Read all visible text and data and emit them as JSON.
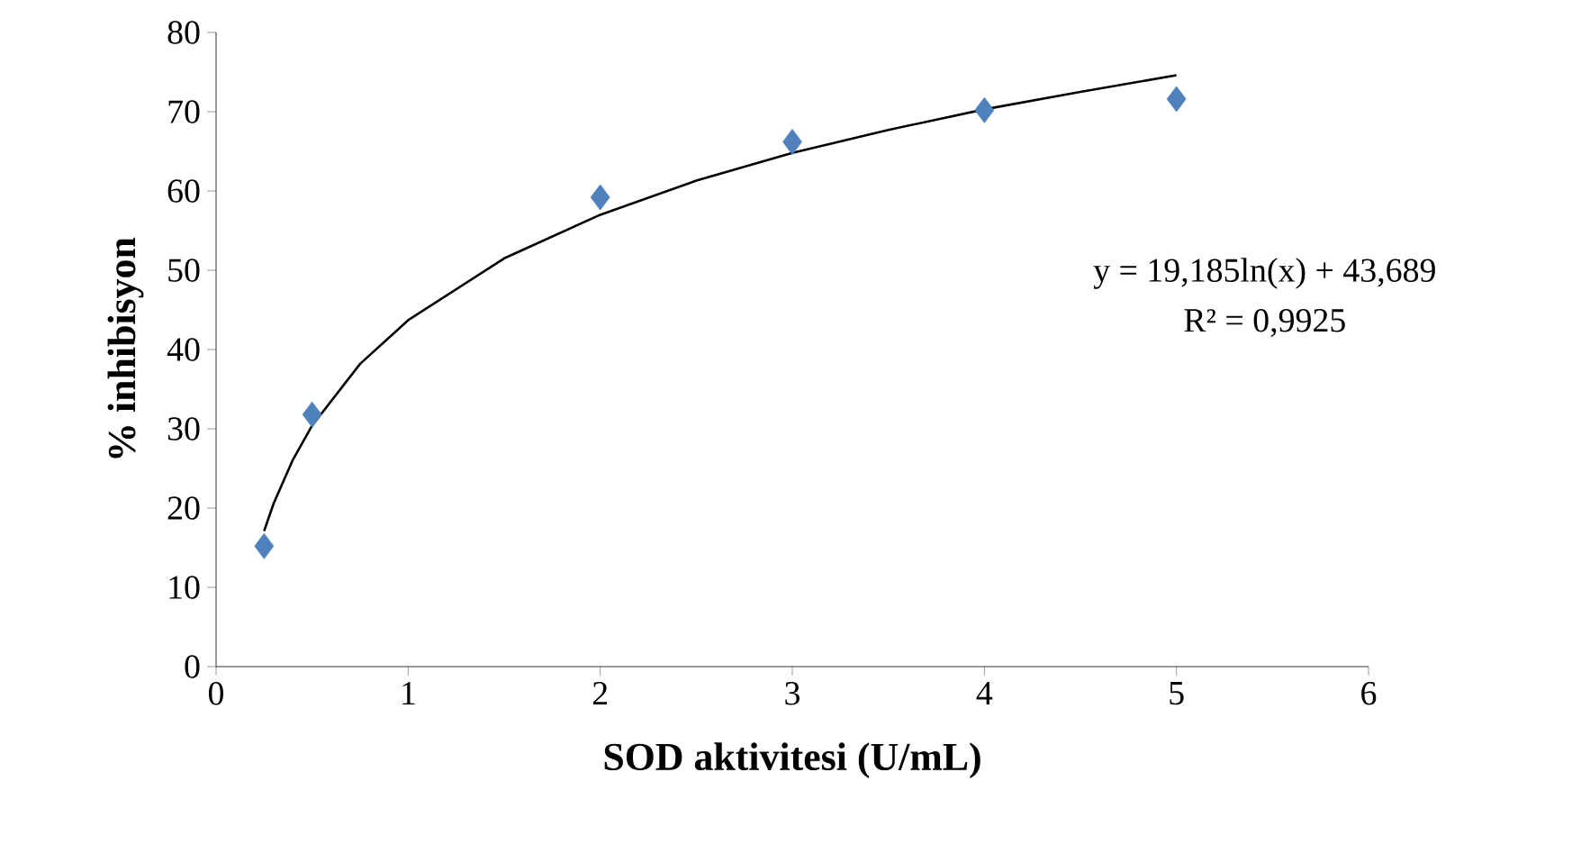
{
  "chart_data": {
    "type": "scatter",
    "xlabel": "SOD aktivitesi (U/mL)",
    "ylabel": "% inhibisyon",
    "xlim": [
      0,
      6
    ],
    "xticks": [
      0,
      1,
      2,
      3,
      4,
      5,
      6
    ],
    "ylim": [
      0,
      80
    ],
    "yticks": [
      0,
      10,
      20,
      30,
      40,
      50,
      60,
      70,
      80
    ],
    "grid": false,
    "marker": "diamond",
    "series": [
      {
        "color": "#4f81bd",
        "x": [
          0.25,
          0.5,
          2,
          3,
          4,
          5
        ],
        "values": [
          15.2,
          31.8,
          59.2,
          66.2,
          70.2,
          71.6
        ]
      },
      {
        "type": "line",
        "color": "#000000",
        "marker": "none",
        "x": [
          0.25,
          0.3,
          0.4,
          0.5,
          0.75,
          1,
          1.5,
          2,
          2.5,
          3,
          3.5,
          4,
          4.5,
          5
        ],
        "values": [
          17.1,
          20.6,
          26.1,
          30.4,
          38.2,
          43.7,
          51.5,
          57.0,
          61.3,
          64.8,
          67.7,
          70.3,
          72.5,
          74.6
        ]
      }
    ],
    "annotations": [
      "y = 19,185ln(x) + 43,689",
      "R² = 0,9925"
    ]
  }
}
